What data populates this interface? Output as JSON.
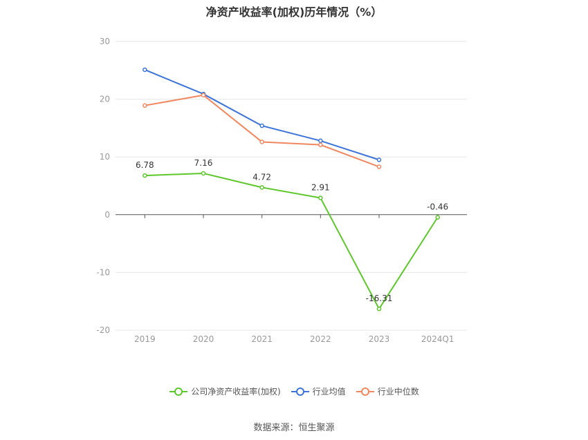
{
  "chart_data": {
    "type": "line",
    "title": "净资产收益率(加权)历年情况（%）",
    "categories": [
      "2019",
      "2020",
      "2021",
      "2022",
      "2023",
      "2024Q1"
    ],
    "ylim": [
      -20,
      30
    ],
    "yticks": [
      30,
      20,
      10,
      0,
      -10,
      -20
    ],
    "grid": true,
    "legend_position": "bottom",
    "series": [
      {
        "name": "公司净资产收益率(加权)",
        "color": "#5cc729",
        "show_labels": true,
        "values": [
          6.78,
          7.16,
          4.72,
          2.91,
          -16.31,
          -0.46
        ]
      },
      {
        "name": "行业均值",
        "color": "#3b73db",
        "show_labels": false,
        "values": [
          25.1,
          20.9,
          15.4,
          12.8,
          9.5,
          null
        ]
      },
      {
        "name": "行业中位数",
        "color": "#f0875f",
        "show_labels": false,
        "values": [
          18.9,
          20.7,
          12.6,
          12.1,
          8.3,
          null
        ]
      }
    ]
  },
  "footer": {
    "source": "数据来源：恒生聚源"
  }
}
